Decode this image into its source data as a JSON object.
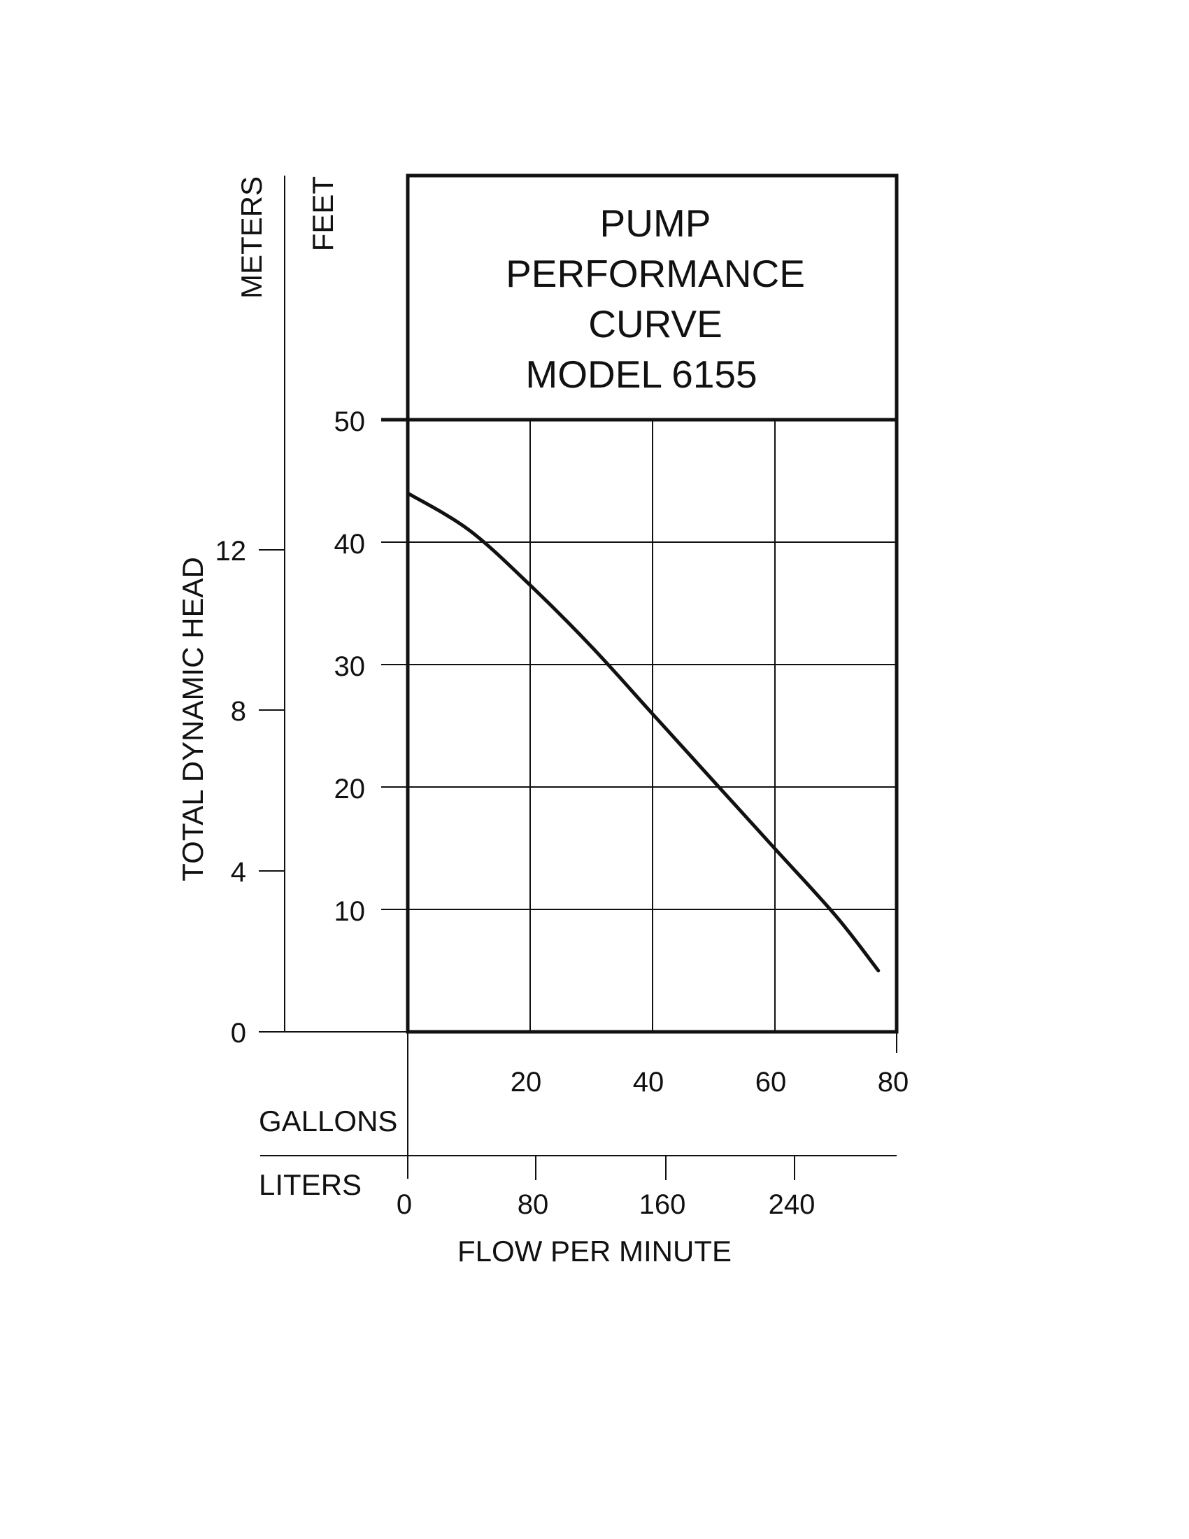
{
  "chart_data": {
    "type": "line",
    "title_lines": [
      "PUMP",
      "PERFORMANCE",
      "CURVE",
      "MODEL 6155"
    ],
    "ylabel": "TOTAL DYNAMIC HEAD",
    "xlabel": "FLOW PER MINUTE",
    "primary_y": {
      "unit": "FEET",
      "ticks": [
        "10",
        "20",
        "30",
        "40",
        "50"
      ],
      "range": [
        0,
        50
      ]
    },
    "secondary_y": {
      "unit": "METERS",
      "ticks": [
        "0",
        "4",
        "8",
        "12"
      ]
    },
    "primary_x": {
      "unit": "GALLONS",
      "ticks": [
        "20",
        "40",
        "60",
        "80"
      ],
      "range": [
        0,
        80
      ]
    },
    "secondary_x": {
      "unit": "LITERS",
      "ticks": [
        "0",
        "80",
        "160",
        "240"
      ]
    },
    "grid": true,
    "series": [
      {
        "x": [
          0,
          10,
          20,
          30,
          40,
          50,
          60,
          70,
          77
        ],
        "y": [
          44,
          41,
          36.5,
          31.5,
          26,
          20.5,
          15,
          9.5,
          5
        ]
      }
    ],
    "colors": {
      "line": "#111111",
      "grid": "#111111"
    }
  }
}
